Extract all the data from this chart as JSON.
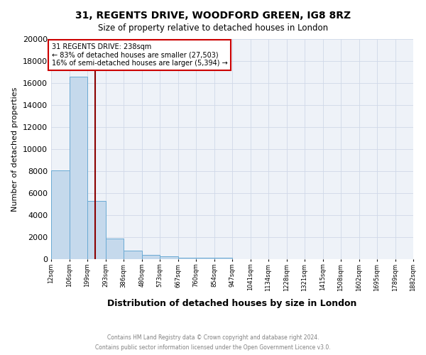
{
  "title1": "31, REGENTS DRIVE, WOODFORD GREEN, IG8 8RZ",
  "title2": "Size of property relative to detached houses in London",
  "xlabel": "Distribution of detached houses by size in London",
  "ylabel": "Number of detached properties",
  "footer1": "Contains HM Land Registry data © Crown copyright and database right 2024.",
  "footer2": "Contains public sector information licensed under the Open Government Licence v3.0.",
  "annotation_line1": "31 REGENTS DRIVE: 238sqm",
  "annotation_line2": "← 83% of detached houses are smaller (27,503)",
  "annotation_line3": "16% of semi-detached houses are larger (5,394) →",
  "property_size": 238,
  "bin_edges": [
    12,
    106,
    199,
    293,
    386,
    480,
    573,
    667,
    760,
    854,
    947,
    1041,
    1134,
    1228,
    1321,
    1415,
    1508,
    1602,
    1695,
    1789,
    1882
  ],
  "bar_heights": [
    8050,
    16600,
    5300,
    1850,
    800,
    400,
    240,
    155,
    145,
    120,
    0,
    0,
    0,
    0,
    0,
    0,
    0,
    0,
    0,
    0
  ],
  "bar_color": "#c5d9ec",
  "bar_edge_color": "#6aaad4",
  "vline_color": "#8b0000",
  "annotation_box_color": "#cc0000",
  "background_color": "#eef2f8",
  "grid_color": "#d0d8e8",
  "ylim": [
    0,
    20000
  ],
  "yticks": [
    0,
    2000,
    4000,
    6000,
    8000,
    10000,
    12000,
    14000,
    16000,
    18000,
    20000
  ]
}
